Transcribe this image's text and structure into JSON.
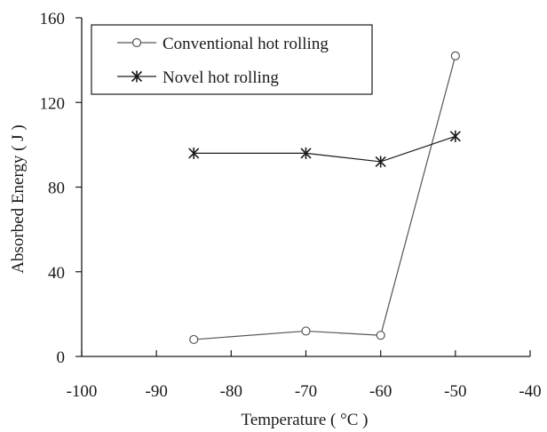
{
  "chart_data": {
    "type": "line",
    "title": "",
    "xlabel": "Temperature ( °C )",
    "ylabel": "Absorbed Energy ( J )",
    "xlim": [
      -100,
      -40
    ],
    "ylim": [
      0,
      160
    ],
    "xticks": [
      -100,
      -90,
      -80,
      -70,
      -60,
      -50,
      -40
    ],
    "xtick_labels": [
      "-100",
      "-90",
      "-80",
      "-70",
      "-60",
      "-50",
      "-40"
    ],
    "yticks": [
      0,
      40,
      80,
      120,
      160
    ],
    "ytick_labels": [
      "0",
      "40",
      "80",
      "120",
      "160"
    ],
    "grid": false,
    "legend_position": "top-left",
    "series": [
      {
        "name": "Conventional hot rolling",
        "marker": "circle",
        "color": "#555555",
        "x": [
          -85,
          -70,
          -60,
          -50
        ],
        "y": [
          8,
          12,
          10,
          142
        ]
      },
      {
        "name": "Novel hot rolling",
        "marker": "asterisk",
        "color": "#1a1a1a",
        "x": [
          -85,
          -70,
          -60,
          -50
        ],
        "y": [
          96,
          96,
          92,
          104
        ]
      }
    ]
  }
}
